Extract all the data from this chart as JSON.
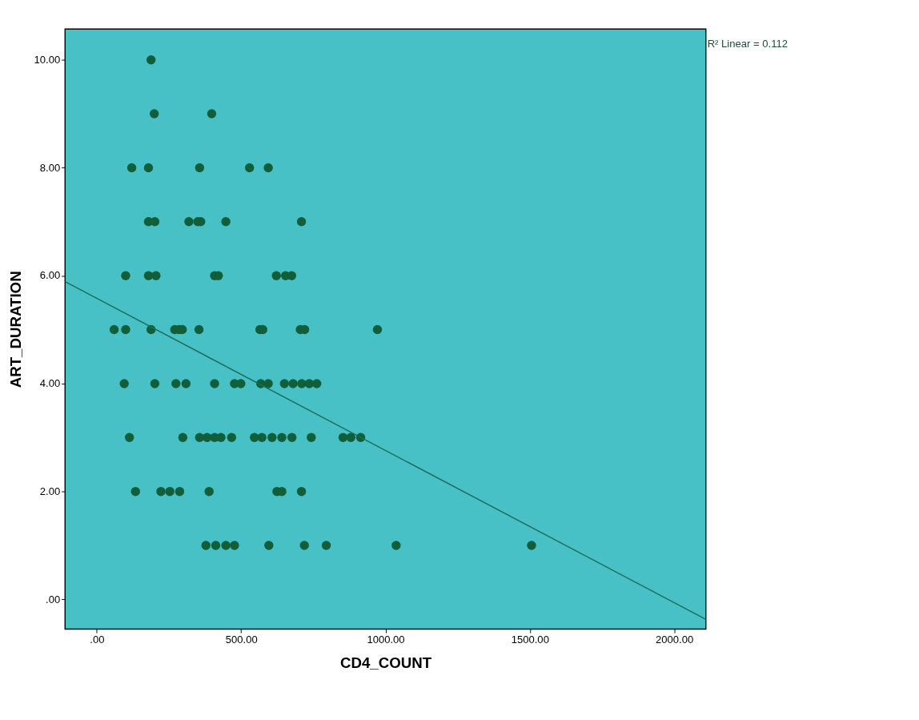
{
  "chart_data": {
    "type": "scatter",
    "xlabel": "CD4_COUNT",
    "ylabel": "ART_DURATION",
    "annotations": [
      "R² Linear = 0.112"
    ],
    "xlim": [
      -110,
      2110
    ],
    "ylim": [
      -0.55,
      10.57
    ],
    "xticks": [
      {
        "value": 0,
        "label": ".00"
      },
      {
        "value": 500,
        "label": "500.00"
      },
      {
        "value": 1000,
        "label": "1000.00"
      },
      {
        "value": 1500,
        "label": "1500.00"
      },
      {
        "value": 2000,
        "label": "2000.00"
      }
    ],
    "yticks": [
      {
        "value": 0,
        "label": ".00"
      },
      {
        "value": 2,
        "label": "2.00"
      },
      {
        "value": 4,
        "label": "4.00"
      },
      {
        "value": 6,
        "label": "6.00"
      },
      {
        "value": 8,
        "label": "8.00"
      },
      {
        "value": 10,
        "label": "10.00"
      }
    ],
    "grid": false,
    "series": [
      {
        "marker": "circle",
        "color": "#105e3a",
        "x": [
          188,
          199,
          398,
          121,
          179,
          356,
          529,
          594,
          179,
          201,
          319,
          350,
          360,
          447,
          709,
          100,
          179,
          205,
          408,
          421,
          622,
          654,
          675,
          60,
          100,
          188,
          270,
          285,
          296,
          354,
          565,
          575,
          705,
          720,
          972,
          95,
          201,
          274,
          309,
          408,
          477,
          499,
          568,
          594,
          650,
          680,
          710,
          736,
          762,
          113,
          298,
          356,
          382,
          408,
          430,
          467,
          546,
          572,
          607,
          641,
          676,
          743,
          853,
          880,
          914,
          134,
          222,
          253,
          287,
          389,
          624,
          641,
          709,
          378,
          412,
          447,
          477,
          596,
          719,
          795,
          1037,
          1506
        ],
        "values": [
          10,
          9,
          9,
          8,
          8,
          8,
          8,
          8,
          7,
          7,
          7,
          7,
          7,
          7,
          7,
          6,
          6,
          6,
          6,
          6,
          6,
          6,
          6,
          5,
          5,
          5,
          5,
          5,
          5,
          5,
          5,
          5,
          5,
          5,
          5,
          4,
          4,
          4,
          4,
          4,
          4,
          4,
          4,
          4,
          4,
          4,
          4,
          4,
          4,
          3,
          3,
          3,
          3,
          3,
          3,
          3,
          3,
          3,
          3,
          3,
          3,
          3,
          3,
          3,
          3,
          2,
          2,
          2,
          2,
          2,
          2,
          2,
          2,
          1,
          1,
          1,
          1,
          1,
          1,
          1,
          1,
          1
        ]
      },
      {
        "type": "line",
        "color": "#1d6b5a",
        "x": [
          -110,
          2110
        ],
        "values": [
          5.89,
          -0.37
        ]
      }
    ]
  }
}
